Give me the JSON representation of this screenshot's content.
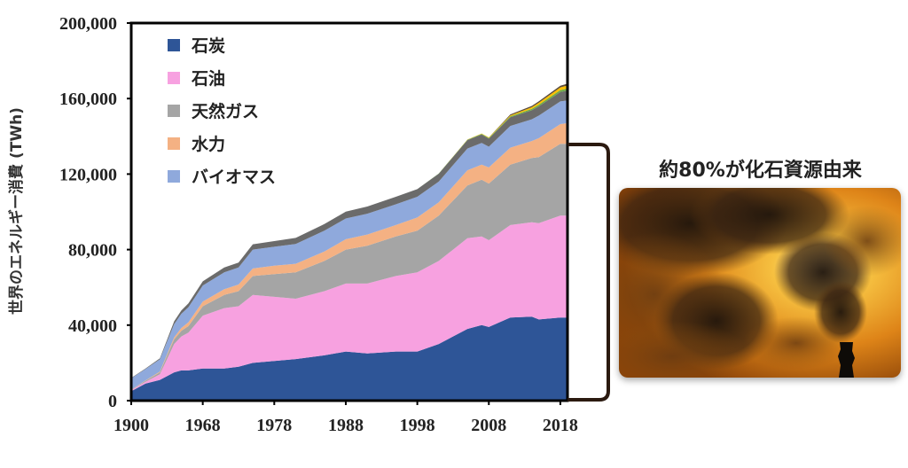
{
  "chart_data": {
    "type": "area",
    "stacked": true,
    "ylabel": "世界のエネルギー消費 (TWh)",
    "xlabel": "",
    "ylim": [
      0,
      200000
    ],
    "yticks": [
      "0",
      "40,000",
      "80,000",
      "120,000",
      "160,000",
      "200,000"
    ],
    "ytick_values": [
      0,
      40000,
      80000,
      120000,
      160000,
      200000
    ],
    "xticks": [
      "1900",
      "1968",
      "1978",
      "1988",
      "1998",
      "2008",
      "2018"
    ],
    "xtick_positions": [
      0,
      10,
      20,
      30,
      40,
      50,
      60
    ],
    "legend": {
      "placement": "top-left"
    },
    "x_index": [
      0,
      2,
      4,
      6,
      7,
      8,
      10,
      13,
      15,
      17,
      20,
      23,
      27,
      30,
      33,
      37,
      40,
      43,
      47,
      49,
      50,
      53,
      56,
      57,
      60,
      61
    ],
    "series": [
      {
        "name": "石炭",
        "color": "#2e5597",
        "values": [
          5000,
          9000,
          11000,
          15000,
          16000,
          16000,
          17000,
          17000,
          18000,
          20000,
          21000,
          22000,
          24000,
          26000,
          25000,
          26000,
          26000,
          30000,
          38000,
          40000,
          39000,
          44000,
          44500,
          43000,
          44000,
          44000
        ]
      },
      {
        "name": "石油",
        "color": "#f7a1e0",
        "values": [
          500,
          1000,
          3000,
          15000,
          18000,
          20000,
          28000,
          32000,
          32000,
          36000,
          34000,
          32000,
          34000,
          36000,
          37000,
          40000,
          42000,
          44000,
          48000,
          47000,
          46000,
          49000,
          50000,
          51000,
          54000,
          54000
        ]
      },
      {
        "name": "天然ガス",
        "color": "#a5a5a5",
        "values": [
          200,
          500,
          1000,
          2500,
          3000,
          3500,
          5000,
          7000,
          8000,
          10000,
          12000,
          14000,
          16000,
          18000,
          20000,
          21000,
          22000,
          24000,
          28000,
          30000,
          30000,
          32000,
          34000,
          35000,
          38000,
          38000
        ]
      },
      {
        "name": "水力",
        "color": "#f4b183",
        "values": [
          100,
          200,
          400,
          1000,
          1500,
          2000,
          2500,
          3000,
          3500,
          4000,
          4500,
          4500,
          5000,
          5500,
          6000,
          6000,
          7000,
          7000,
          8000,
          8000,
          8500,
          9000,
          9000,
          10000,
          10500,
          11000
        ]
      },
      {
        "name": "バイオマス",
        "color": "#8fa9dc",
        "values": [
          6000,
          6000,
          6500,
          7000,
          7500,
          8000,
          8500,
          9000,
          9000,
          10000,
          10000,
          10500,
          11000,
          11000,
          11000,
          11000,
          11000,
          11000,
          11500,
          11500,
          11000,
          11500,
          11500,
          12000,
          12000,
          12000
        ]
      },
      {
        "color": "#6b6b6b",
        "values": [
          200,
          300,
          500,
          1500,
          1800,
          2000,
          2200,
          2500,
          2600,
          2800,
          3000,
          3200,
          3500,
          3600,
          3800,
          4000,
          4000,
          4200,
          4500,
          4500,
          4300,
          4600,
          4800,
          4900,
          5000,
          5200
        ]
      },
      {
        "color": "#70ad47",
        "values": [
          0,
          0,
          0,
          0,
          0,
          0,
          0,
          0,
          0,
          0,
          0,
          0,
          0,
          0,
          0,
          0,
          0,
          100,
          200,
          300,
          350,
          500,
          800,
          900,
          1000,
          1100
        ]
      },
      {
        "color": "#ffc000",
        "values": [
          0,
          0,
          0,
          0,
          0,
          0,
          0,
          0,
          0,
          0,
          0,
          0,
          0,
          0,
          0,
          0,
          0,
          0,
          100,
          200,
          300,
          500,
          800,
          1000,
          1400,
          1600
        ]
      },
      {
        "color": "#5a4a3a",
        "values": [
          0,
          0,
          0,
          0,
          0,
          0,
          0,
          0,
          0,
          0,
          0,
          0,
          0,
          0,
          0,
          0,
          0,
          0,
          0,
          0,
          0,
          500,
          700,
          800,
          900,
          1000
        ]
      }
    ]
  },
  "annotation": {
    "text": "約80%が化石資源由来",
    "bracket_color": "#2b1a10"
  },
  "photo": {
    "subject": "smokestack-emitting-smoke",
    "colors": [
      "#f0a020",
      "#c86010",
      "#2a1a10",
      "#fff0b0"
    ]
  }
}
